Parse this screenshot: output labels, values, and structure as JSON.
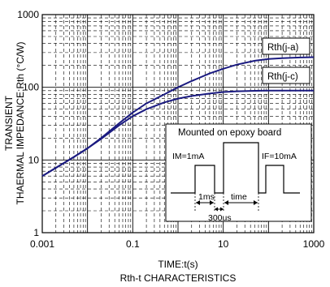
{
  "chart_data": {
    "type": "line",
    "title": "Rth-t CHARACTERISTICS",
    "xlabel": "TIME:t(s)",
    "ylabel_line1": "TRANSIENT",
    "ylabel_line2": "THAERMAL IMPEDANCE:Rth (°C/W)",
    "x_scale": "log",
    "y_scale": "log",
    "xlim": [
      0.001,
      1000
    ],
    "ylim": [
      1,
      1000
    ],
    "x_ticks": [
      {
        "value": 0.001,
        "label": "0.001"
      },
      {
        "value": 0.1,
        "label": "0.1"
      },
      {
        "value": 10,
        "label": "10"
      },
      {
        "value": 1000,
        "label": "1000"
      }
    ],
    "y_ticks": [
      {
        "value": 1,
        "label": "1"
      },
      {
        "value": 10,
        "label": "10"
      },
      {
        "value": 100,
        "label": "100"
      },
      {
        "value": 1000,
        "label": "1000"
      }
    ],
    "grid": true,
    "series": [
      {
        "name": "Rth(j-a)",
        "color": "#1a1a80",
        "x": [
          0.001,
          0.002,
          0.005,
          0.01,
          0.02,
          0.05,
          0.1,
          0.2,
          0.5,
          1,
          2,
          5,
          10,
          20,
          50,
          100,
          200,
          500,
          1000
        ],
        "y": [
          6,
          7.8,
          11,
          14.5,
          20,
          32,
          45,
          60,
          80,
          100,
          122,
          155,
          180,
          205,
          232,
          245,
          252,
          257,
          260
        ]
      },
      {
        "name": "Rth(j-c)",
        "color": "#1a1a80",
        "x": [
          0.001,
          0.002,
          0.005,
          0.01,
          0.02,
          0.05,
          0.1,
          0.2,
          0.5,
          1,
          2,
          5,
          10,
          20,
          50,
          100,
          200,
          500,
          1000
        ],
        "y": [
          6,
          7.8,
          11,
          14.5,
          19.5,
          30,
          40,
          50,
          62,
          70,
          76,
          82,
          86,
          88,
          89.5,
          90,
          90,
          90,
          90
        ]
      }
    ],
    "inset": {
      "title": "Mounted on epoxy board",
      "im_label": "IM=1mA",
      "if_label": "IF=10mA",
      "t1_label": "1ms",
      "t2_label": "time",
      "t3_label": "300us"
    }
  }
}
